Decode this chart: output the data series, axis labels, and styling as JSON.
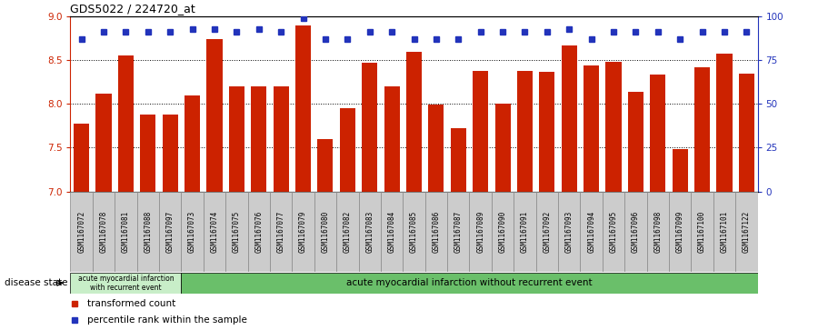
{
  "title": "GDS5022 / 224720_at",
  "categories": [
    "GSM1167072",
    "GSM1167078",
    "GSM1167081",
    "GSM1167088",
    "GSM1167097",
    "GSM1167073",
    "GSM1167074",
    "GSM1167075",
    "GSM1167076",
    "GSM1167077",
    "GSM1167079",
    "GSM1167080",
    "GSM1167082",
    "GSM1167083",
    "GSM1167084",
    "GSM1167085",
    "GSM1167086",
    "GSM1167087",
    "GSM1167089",
    "GSM1167090",
    "GSM1167091",
    "GSM1167092",
    "GSM1167093",
    "GSM1167094",
    "GSM1167095",
    "GSM1167096",
    "GSM1167098",
    "GSM1167099",
    "GSM1167100",
    "GSM1167101",
    "GSM1167122"
  ],
  "bar_values": [
    7.78,
    8.12,
    8.55,
    7.88,
    7.88,
    8.1,
    8.74,
    8.2,
    8.2,
    8.2,
    8.9,
    7.6,
    7.95,
    8.47,
    8.2,
    8.6,
    7.99,
    7.72,
    8.38,
    8.0,
    8.38,
    8.37,
    8.67,
    8.44,
    8.48,
    8.14,
    8.34,
    7.48,
    8.42,
    8.58,
    8.35
  ],
  "percentile_values": [
    87,
    91,
    91,
    91,
    91,
    93,
    93,
    91,
    93,
    91,
    99,
    87,
    87,
    91,
    91,
    87,
    87,
    87,
    91,
    91,
    91,
    91,
    93,
    87,
    91,
    91,
    91,
    87,
    91,
    91,
    91
  ],
  "bar_color": "#cc2200",
  "dot_color": "#2233bb",
  "ylim_left": [
    7.0,
    9.0
  ],
  "ylim_right": [
    0,
    100
  ],
  "yticks_left": [
    7.0,
    7.5,
    8.0,
    8.5,
    9.0
  ],
  "yticks_right": [
    0,
    25,
    50,
    75,
    100
  ],
  "group1_label": "acute myocardial infarction\nwith recurrent event",
  "group2_label": "acute myocardial infarction without recurrent event",
  "group1_count": 5,
  "disease_state_label": "disease state",
  "legend1": "transformed count",
  "legend2": "percentile rank within the sample",
  "group1_color": "#c8eec8",
  "group2_color": "#6abf6a",
  "xlabel_bg": "#cccccc",
  "xlabel_border": "#888888"
}
